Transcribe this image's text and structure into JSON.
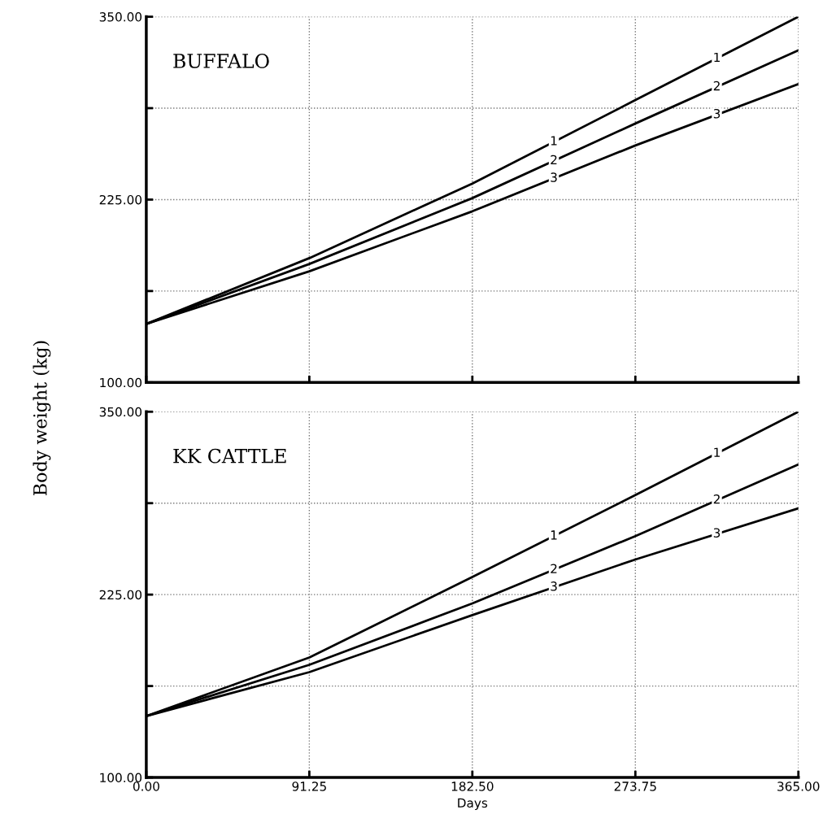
{
  "chart_data": [
    {
      "type": "line",
      "title": "BUFFALO",
      "ylabel": "Body weight (kg)",
      "x": [
        0,
        91.25,
        182.5,
        273.75,
        365
      ],
      "series": [
        {
          "name": "1",
          "color": "#000000",
          "values": [
            140,
            185,
            236,
            293,
            350
          ]
        },
        {
          "name": "2",
          "color": "#000000",
          "values": [
            140,
            181,
            226,
            277,
            327
          ]
        },
        {
          "name": "3",
          "color": "#000000",
          "values": [
            140,
            176,
            217,
            262,
            304
          ]
        }
      ],
      "xlim": [
        0,
        365
      ],
      "ylim": [
        100,
        350
      ],
      "xticks": [
        {
          "value": 0,
          "label": null
        },
        {
          "value": 91.25,
          "label": null
        },
        {
          "value": 182.5,
          "label": null
        },
        {
          "value": 273.75,
          "label": null
        },
        {
          "value": 365,
          "label": null
        }
      ],
      "yticks": [
        {
          "value": 100,
          "label": "100.00"
        },
        {
          "value": 162.5,
          "label": null
        },
        {
          "value": 225,
          "label": "225.00"
        },
        {
          "value": 287.5,
          "label": null
        },
        {
          "value": 350,
          "label": "350.00"
        }
      ],
      "grid": true,
      "tick_labels": "y",
      "line_style": "solid"
    },
    {
      "type": "line",
      "title": "KK CATTLE",
      "xlabel": "Days",
      "x": [
        0,
        91.25,
        182.5,
        273.75,
        365
      ],
      "series": [
        {
          "name": "1",
          "color": "#000000",
          "values": [
            142,
            182,
            237,
            293,
            350
          ]
        },
        {
          "name": "2",
          "color": "#000000",
          "values": [
            142,
            177,
            219,
            265,
            314
          ]
        },
        {
          "name": "3",
          "color": "#000000",
          "values": [
            142,
            172,
            211,
            249,
            284
          ]
        }
      ],
      "xlim": [
        0,
        365
      ],
      "ylim": [
        100,
        350
      ],
      "xticks": [
        {
          "value": 0,
          "label": "0.00"
        },
        {
          "value": 91.25,
          "label": "91.25"
        },
        {
          "value": 182.5,
          "label": "182.50"
        },
        {
          "value": 273.75,
          "label": "273.75"
        },
        {
          "value": 365,
          "label": "365.00"
        }
      ],
      "yticks": [
        {
          "value": 100,
          "label": "100.00"
        },
        {
          "value": 162.5,
          "label": null
        },
        {
          "value": 225,
          "label": "225.00"
        },
        {
          "value": 287.5,
          "label": null
        },
        {
          "value": 350,
          "label": "350.00"
        }
      ],
      "grid": true,
      "line_style": "solid"
    }
  ]
}
